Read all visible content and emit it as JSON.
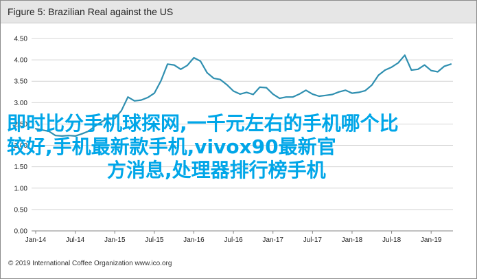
{
  "header": {
    "title": "Figure 5: Brazilian Real against the US"
  },
  "footer": {
    "text": "© 2019 International Coffee Organization  www.ico.org"
  },
  "overlay": {
    "line1": "即时比分手机球探网,一千元左右的手机哪个比",
    "line2": "较好,手机最新款手机,vivox90最新官",
    "line3": "方消息,处理器排行榜手机"
  },
  "colors": {
    "line": "#2f8fb0",
    "grid": "#d4d4d4",
    "axis": "#808080",
    "overlay_text": "#00a6e8"
  },
  "chart_data": {
    "type": "line",
    "title": "Figure 5: Brazilian Real against the US",
    "xlabel": "",
    "ylabel": "",
    "ylim": [
      0,
      4.5
    ],
    "yticks": [
      "0.00",
      "0.50",
      "1.00",
      "1.50",
      "2.00",
      "2.50",
      "3.00",
      "3.50",
      "4.00",
      "4.50"
    ],
    "xticks": [
      "Jan-14",
      "Jul-14",
      "Jan-15",
      "Jul-15",
      "Jan-16",
      "Jul-16",
      "Jan-17",
      "Jul-17",
      "Jan-18",
      "Jul-18",
      "Jan-19"
    ],
    "grid": true,
    "legend": "none",
    "x": [
      "2014-01",
      "2014-02",
      "2014-03",
      "2014-04",
      "2014-05",
      "2014-06",
      "2014-07",
      "2014-08",
      "2014-09",
      "2014-10",
      "2014-11",
      "2014-12",
      "2015-01",
      "2015-02",
      "2015-03",
      "2015-04",
      "2015-05",
      "2015-06",
      "2015-07",
      "2015-08",
      "2015-09",
      "2015-10",
      "2015-11",
      "2015-12",
      "2016-01",
      "2016-02",
      "2016-03",
      "2016-04",
      "2016-05",
      "2016-06",
      "2016-07",
      "2016-08",
      "2016-09",
      "2016-10",
      "2016-11",
      "2016-12",
      "2017-01",
      "2017-02",
      "2017-03",
      "2017-04",
      "2017-05",
      "2017-06",
      "2017-07",
      "2017-08",
      "2017-09",
      "2017-10",
      "2017-11",
      "2017-12",
      "2018-01",
      "2018-02",
      "2018-03",
      "2018-04",
      "2018-05",
      "2018-06",
      "2018-07",
      "2018-08",
      "2018-09",
      "2018-10",
      "2018-11",
      "2018-12",
      "2019-01",
      "2019-02",
      "2019-03",
      "2019-04"
    ],
    "series": [
      {
        "values": [
          2.39,
          2.36,
          2.33,
          2.23,
          2.22,
          2.23,
          2.22,
          2.27,
          2.33,
          2.45,
          2.55,
          2.64,
          2.63,
          2.81,
          3.13,
          3.04,
          3.06,
          3.12,
          3.22,
          3.51,
          3.9,
          3.88,
          3.78,
          3.87,
          4.05,
          3.97,
          3.7,
          3.57,
          3.54,
          3.42,
          3.27,
          3.2,
          3.24,
          3.19,
          3.36,
          3.35,
          3.2,
          3.1,
          3.13,
          3.13,
          3.2,
          3.29,
          3.2,
          3.15,
          3.17,
          3.19,
          3.25,
          3.29,
          3.22,
          3.24,
          3.28,
          3.41,
          3.64,
          3.76,
          3.83,
          3.93,
          4.11,
          3.76,
          3.78,
          3.88,
          3.75,
          3.72,
          3.85,
          3.9
        ]
      }
    ]
  }
}
